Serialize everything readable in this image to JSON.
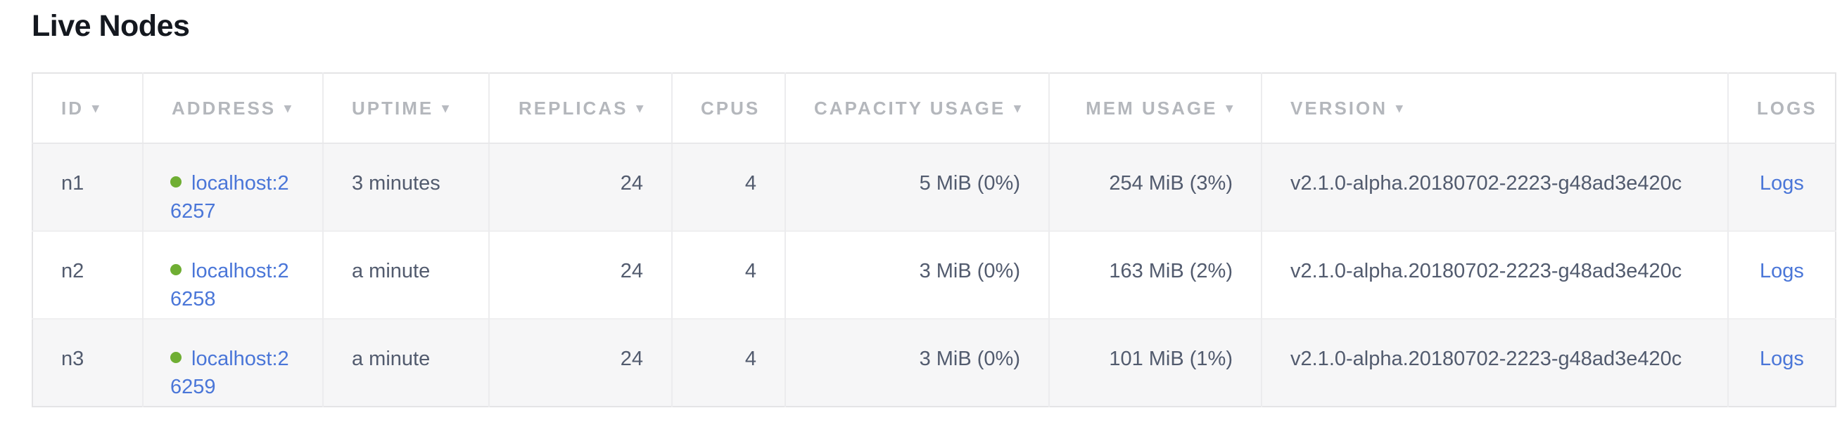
{
  "title": "Live Nodes",
  "colors": {
    "link": "#4a76d8",
    "live_dot": "#6fae33",
    "header_text": "#b4b7bc",
    "body_text": "#525b6e",
    "row_stripe": "#f6f6f7"
  },
  "table": {
    "sort_arrow": "▾",
    "columns": [
      {
        "key": "id",
        "label": "ID",
        "sortable": true,
        "align": "left"
      },
      {
        "key": "address",
        "label": "ADDRESS",
        "sortable": true,
        "align": "left"
      },
      {
        "key": "uptime",
        "label": "UPTIME",
        "sortable": true,
        "align": "left"
      },
      {
        "key": "replicas",
        "label": "REPLICAS",
        "sortable": true,
        "align": "right"
      },
      {
        "key": "cpus",
        "label": "CPUS",
        "sortable": false,
        "align": "right"
      },
      {
        "key": "capacity",
        "label": "CAPACITY USAGE",
        "sortable": true,
        "align": "right"
      },
      {
        "key": "mem",
        "label": "MEM USAGE",
        "sortable": true,
        "align": "right"
      },
      {
        "key": "version",
        "label": "VERSION",
        "sortable": true,
        "align": "left"
      },
      {
        "key": "logs",
        "label": "LOGS",
        "sortable": false,
        "align": "center"
      }
    ],
    "rows": [
      {
        "id": "n1",
        "status": "live",
        "address": "localhost:26257",
        "uptime": "3 minutes",
        "replicas": "24",
        "cpus": "4",
        "capacity": "5 MiB (0%)",
        "mem": "254 MiB (3%)",
        "version": "v2.1.0-alpha.20180702-2223-g48ad3e420c",
        "logs_label": "Logs"
      },
      {
        "id": "n2",
        "status": "live",
        "address": "localhost:26258",
        "uptime": "a minute",
        "replicas": "24",
        "cpus": "4",
        "capacity": "3 MiB (0%)",
        "mem": "163 MiB (2%)",
        "version": "v2.1.0-alpha.20180702-2223-g48ad3e420c",
        "logs_label": "Logs"
      },
      {
        "id": "n3",
        "status": "live",
        "address": "localhost:26259",
        "uptime": "a minute",
        "replicas": "24",
        "cpus": "4",
        "capacity": "3 MiB (0%)",
        "mem": "101 MiB (1%)",
        "version": "v2.1.0-alpha.20180702-2223-g48ad3e420c",
        "logs_label": "Logs"
      }
    ]
  }
}
